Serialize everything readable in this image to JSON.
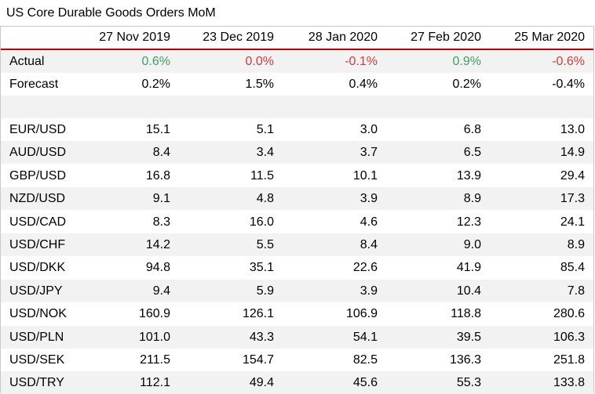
{
  "title": "US Core Durable Goods Orders MoM",
  "columns": [
    "27 Nov 2019",
    "23 Dec 2019",
    "28 Jan 2020",
    "27 Feb 2020",
    "25 Mar 2020"
  ],
  "actual": {
    "label": "Actual",
    "values": [
      "0.6%",
      "0.0%",
      "-0.1%",
      "0.9%",
      "-0.6%"
    ],
    "tones": [
      "pos",
      "neg",
      "neg",
      "pos",
      "neg"
    ]
  },
  "forecast": {
    "label": "Forecast",
    "values": [
      "0.2%",
      "1.5%",
      "0.4%",
      "0.2%",
      "-0.4%"
    ]
  },
  "pairs": [
    {
      "label": "EUR/USD",
      "values": [
        "15.1",
        "5.1",
        "3.0",
        "6.8",
        "13.0"
      ]
    },
    {
      "label": "AUD/USD",
      "values": [
        "8.4",
        "3.4",
        "3.7",
        "6.5",
        "14.9"
      ]
    },
    {
      "label": "GBP/USD",
      "values": [
        "16.8",
        "11.5",
        "10.1",
        "13.9",
        "29.4"
      ]
    },
    {
      "label": "NZD/USD",
      "values": [
        "9.1",
        "4.8",
        "3.9",
        "8.9",
        "17.3"
      ]
    },
    {
      "label": "USD/CAD",
      "values": [
        "8.3",
        "16.0",
        "4.6",
        "12.3",
        "24.1"
      ]
    },
    {
      "label": "USD/CHF",
      "values": [
        "14.2",
        "5.5",
        "8.4",
        "9.0",
        "8.9"
      ]
    },
    {
      "label": "USD/DKK",
      "values": [
        "94.8",
        "35.1",
        "22.6",
        "41.9",
        "85.4"
      ]
    },
    {
      "label": "USD/JPY",
      "values": [
        "9.4",
        "5.9",
        "3.9",
        "10.4",
        "7.8"
      ]
    },
    {
      "label": "USD/NOK",
      "values": [
        "160.9",
        "126.1",
        "106.9",
        "118.8",
        "280.6"
      ]
    },
    {
      "label": "USD/PLN",
      "values": [
        "101.0",
        "43.3",
        "54.1",
        "39.5",
        "106.3"
      ]
    },
    {
      "label": "USD/SEK",
      "values": [
        "211.5",
        "154.7",
        "82.5",
        "136.3",
        "251.8"
      ]
    },
    {
      "label": "USD/TRY",
      "values": [
        "112.1",
        "49.4",
        "45.6",
        "55.3",
        "133.8"
      ]
    }
  ],
  "colors": {
    "positive": "#3f9f5f",
    "negative": "#d23c3c",
    "separator": "#c00000",
    "stripe": "#f2f2f2",
    "border": "#c8c8c8"
  }
}
